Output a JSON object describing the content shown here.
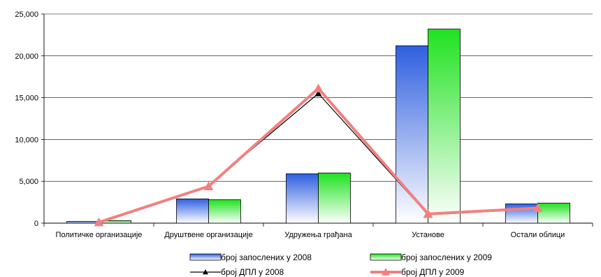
{
  "chart_data": {
    "type": "bar",
    "categories": [
      "Политичке организације",
      "Друштвене организације",
      "Удружења грађана",
      "Установе",
      "Остали облици"
    ],
    "series": [
      {
        "name": "број запослених у  2008",
        "kind": "bar",
        "values": [
          200,
          2900,
          5900,
          21200,
          2300
        ],
        "color": "#2f5fe0"
      },
      {
        "name": "број запослених у  2009",
        "kind": "bar",
        "values": [
          300,
          2800,
          6000,
          23200,
          2400
        ],
        "color": "#1fe21f"
      },
      {
        "name": "број ДПЛ у 2008",
        "kind": "line",
        "values": [
          150,
          4500,
          15500,
          1000,
          1700
        ],
        "color": "#000000"
      },
      {
        "name": "број ДПЛ у 2009",
        "kind": "line",
        "values": [
          100,
          4400,
          16100,
          1100,
          1800
        ],
        "color": "#f28080"
      }
    ],
    "ylim": [
      0,
      25000
    ],
    "yticks": [
      "0",
      "5,000",
      "10,000",
      "15,000",
      "20,000",
      "25,000"
    ],
    "grid": true,
    "legend_position": "bottom"
  }
}
